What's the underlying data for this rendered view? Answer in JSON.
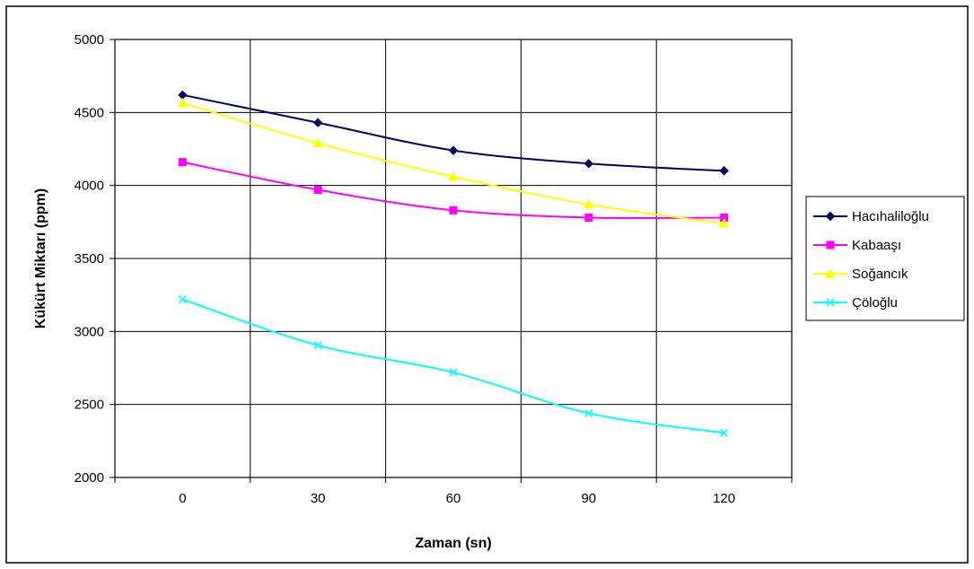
{
  "chart_data": {
    "type": "line",
    "title": "",
    "xlabel": "Zaman (sn)",
    "ylabel": "Kükürt Miktarı (ppm)",
    "x": [
      0,
      30,
      60,
      90,
      120
    ],
    "x_tick_labels": [
      "0",
      "30",
      "60",
      "90",
      "120"
    ],
    "ylim": [
      2000,
      5000
    ],
    "y_ticks": [
      2000,
      2500,
      3000,
      3500,
      4000,
      4500,
      5000
    ],
    "grid": true,
    "legend_position": "right",
    "series": [
      {
        "name": "Hacıhaliloğlu",
        "values": [
          4620,
          4430,
          4240,
          4150,
          4100
        ],
        "color": "#000066",
        "marker": "diamond"
      },
      {
        "name": "Kabaaşı",
        "values": [
          4160,
          3970,
          3830,
          3780,
          3780
        ],
        "color": "#ff00ff",
        "marker": "square"
      },
      {
        "name": "Soğancık",
        "values": [
          4565,
          4290,
          4060,
          3870,
          3740
        ],
        "color": "#ffff00",
        "marker": "triangle"
      },
      {
        "name": "Çöloğlu",
        "values": [
          3220,
          2905,
          2720,
          2440,
          2305
        ],
        "color": "#00ffff",
        "marker": "x"
      }
    ]
  }
}
